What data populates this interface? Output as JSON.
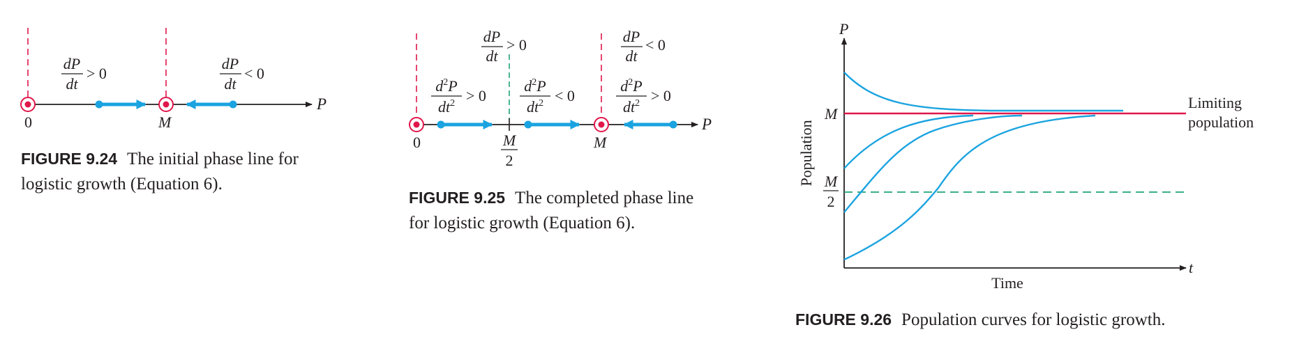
{
  "colors": {
    "ink": "#231f20",
    "blue": "#1aa3e0",
    "red": "#e0174a",
    "green": "#1fa37a"
  },
  "fig24": {
    "number": "FIGURE 9.24",
    "caption_line1": "The initial phase line for",
    "caption_line2": "logistic growth (Equation 6).",
    "axis_var": "P",
    "label_zero": "0",
    "label_m": "M",
    "left_sign": "> 0",
    "right_sign": "< 0",
    "deriv_num": "dP",
    "deriv_den": "dt"
  },
  "fig25": {
    "number": "FIGURE 9.25",
    "caption_line1": "The completed phase line",
    "caption_line2": "for logistic growth (Equation 6).",
    "axis_var": "P",
    "label_zero": "0",
    "label_m": "M",
    "label_half_num": "M",
    "label_half_den": "2",
    "top_left_sign": "> 0",
    "top_right_sign": "< 0",
    "second_1_sign": "> 0",
    "second_2_sign": "< 0",
    "second_3_sign": "> 0",
    "deriv_num": "dP",
    "deriv_den": "dt",
    "second_num_a": "d",
    "second_num_sup": "2",
    "second_num_b": "P",
    "second_den_a": "dt",
    "second_den_sup": "2"
  },
  "fig26": {
    "number": "FIGURE 9.26",
    "caption": "Population curves for logistic growth.",
    "y_axis_var": "P",
    "x_axis_var": "t",
    "xlabel": "Time",
    "ylabel": "Population",
    "label_m": "M",
    "label_half_num": "M",
    "label_half_den": "2",
    "limit_line1": "Limiting",
    "limit_line2": "population"
  }
}
